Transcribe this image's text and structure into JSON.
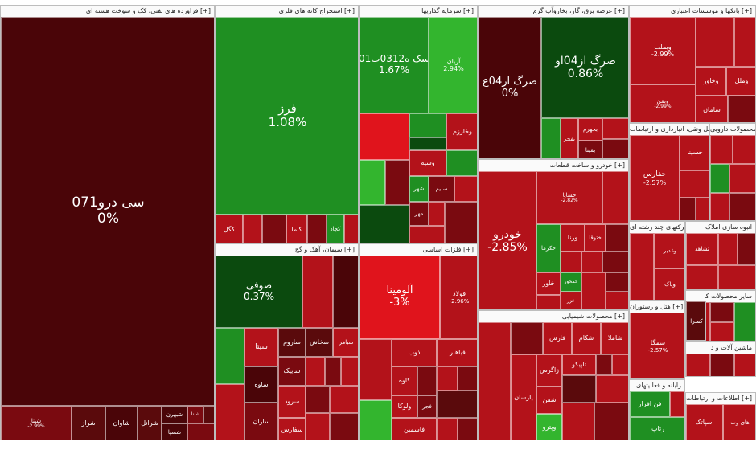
{
  "colors": {
    "deep_red": "#4a0508",
    "dark_red": "#7a0a10",
    "red": "#b3121a",
    "bright_red": "#e0141c",
    "dark_green": "#0b4a0e",
    "green": "#1f8f22",
    "bright_green": "#33b52e",
    "maroon": "#5a0a0c"
  },
  "sectors": [
    {
      "label": "فراورده های نفتی، کک و سوخت هسته ای [+]"
    },
    {
      "label": "استخراج کانه های فلزی [+]"
    },
    {
      "label": "سرمایه گذاریها [+]"
    },
    {
      "label": "عرضه برق، گاز، بخاروآب گرم [+]"
    },
    {
      "label": "بانکها و موسسات اعتباری [+]"
    },
    {
      "label": "سیمان، آهک و گچ [+]"
    },
    {
      "label": "فلزات اساسی [+]"
    },
    {
      "label": "خودرو و ساخت قطعات [+]"
    },
    {
      "label": "محصولات شیمیایی [+]"
    },
    {
      "label": "حمل ونقل، انبارداری و ارتباطات [+]"
    },
    {
      "label": "محصولات دارویی"
    },
    {
      "label": "انبوه سازی املاک"
    },
    {
      "label": "شرکتهای چند رشته ای"
    },
    {
      "label": "سایر محصولات کا"
    },
    {
      "label": "هتل و رستوران [+]"
    },
    {
      "label": "ماشین آلات و د"
    },
    {
      "label": "رایانه و فعالیتهای"
    },
    {
      "label": "اطلاعات و ارتباطات [+]"
    }
  ],
  "tiles": [
    {
      "name": "سی ‌درو071",
      "pct": "0%"
    },
    {
      "name": "شپنا",
      "pct": "-2.99%"
    },
    {
      "name": "شراز"
    },
    {
      "name": "شاوان"
    },
    {
      "name": "شرانل"
    },
    {
      "name": "شبهرن"
    },
    {
      "name": "شسپا"
    },
    {
      "name": "شبنا"
    },
    {
      "name": "فرز",
      "pct": "1.08%"
    },
    {
      "name": "کگل"
    },
    {
      "name": "کاما"
    },
    {
      "name": "کچاد"
    },
    {
      "name": "سک ه0312ب01",
      "pct": "1.67%"
    },
    {
      "name": "آریان",
      "pct": "2.94%"
    },
    {
      "name": "وخارزم"
    },
    {
      "name": "وسپه"
    },
    {
      "name": "شهر"
    },
    {
      "name": "سلیم"
    },
    {
      "name": "مهر"
    },
    {
      "name": "صرگ از04ع",
      "pct": "0%"
    },
    {
      "name": "صرگ از04او",
      "pct": "0.86%"
    },
    {
      "name": "بفجر"
    },
    {
      "name": "بجهرم"
    },
    {
      "name": "بمپنا"
    },
    {
      "name": "وبملت",
      "pct": "-2.99%"
    },
    {
      "name": "وخاور"
    },
    {
      "name": "وملل"
    },
    {
      "name": "وبمن",
      "pct": "-2.99%"
    },
    {
      "name": "سامان"
    },
    {
      "name": "صوفی",
      "pct": "0.37%"
    },
    {
      "name": "سیتا"
    },
    {
      "name": "ساروم"
    },
    {
      "name": "سخاش"
    },
    {
      "name": "سباهر"
    },
    {
      "name": "سایپک"
    },
    {
      "name": "ساوه"
    },
    {
      "name": "سرود"
    },
    {
      "name": "سفارس"
    },
    {
      "name": "ساران"
    },
    {
      "name": "آلومینا",
      "pct": "-3%"
    },
    {
      "name": "فولاد",
      "pct": "-2.96%"
    },
    {
      "name": "ذوب"
    },
    {
      "name": "فباهنر"
    },
    {
      "name": "کاوه"
    },
    {
      "name": "ولوکا"
    },
    {
      "name": "فجر"
    },
    {
      "name": "فاسمین"
    },
    {
      "name": "خودرو",
      "pct": "-2.85%"
    },
    {
      "name": "خساپا",
      "pct": "-2.82%"
    },
    {
      "name": "ورنا"
    },
    {
      "name": "خکرما"
    },
    {
      "name": "ختوقا"
    },
    {
      "name": "خاور"
    },
    {
      "name": "خمحور"
    },
    {
      "name": "خزر"
    },
    {
      "name": "شکام"
    },
    {
      "name": "شاملا"
    },
    {
      "name": "فارس"
    },
    {
      "name": "تاپیکو"
    },
    {
      "name": "زاگرس"
    },
    {
      "name": "پارسان"
    },
    {
      "name": "شفن"
    },
    {
      "name": "وپترو"
    },
    {
      "name": "حفارس",
      "pct": "-2.57%"
    },
    {
      "name": "حسینا"
    },
    {
      "name": "ثشاهد"
    },
    {
      "name": "وغدیر"
    },
    {
      "name": "وپاک"
    },
    {
      "name": "سمگا",
      "pct": "-2.57%"
    },
    {
      "name": "کسرا"
    },
    {
      "name": "فن افزار"
    },
    {
      "name": "رتاپ"
    },
    {
      "name": "اسپاتک"
    },
    {
      "name": "های وب"
    }
  ]
}
